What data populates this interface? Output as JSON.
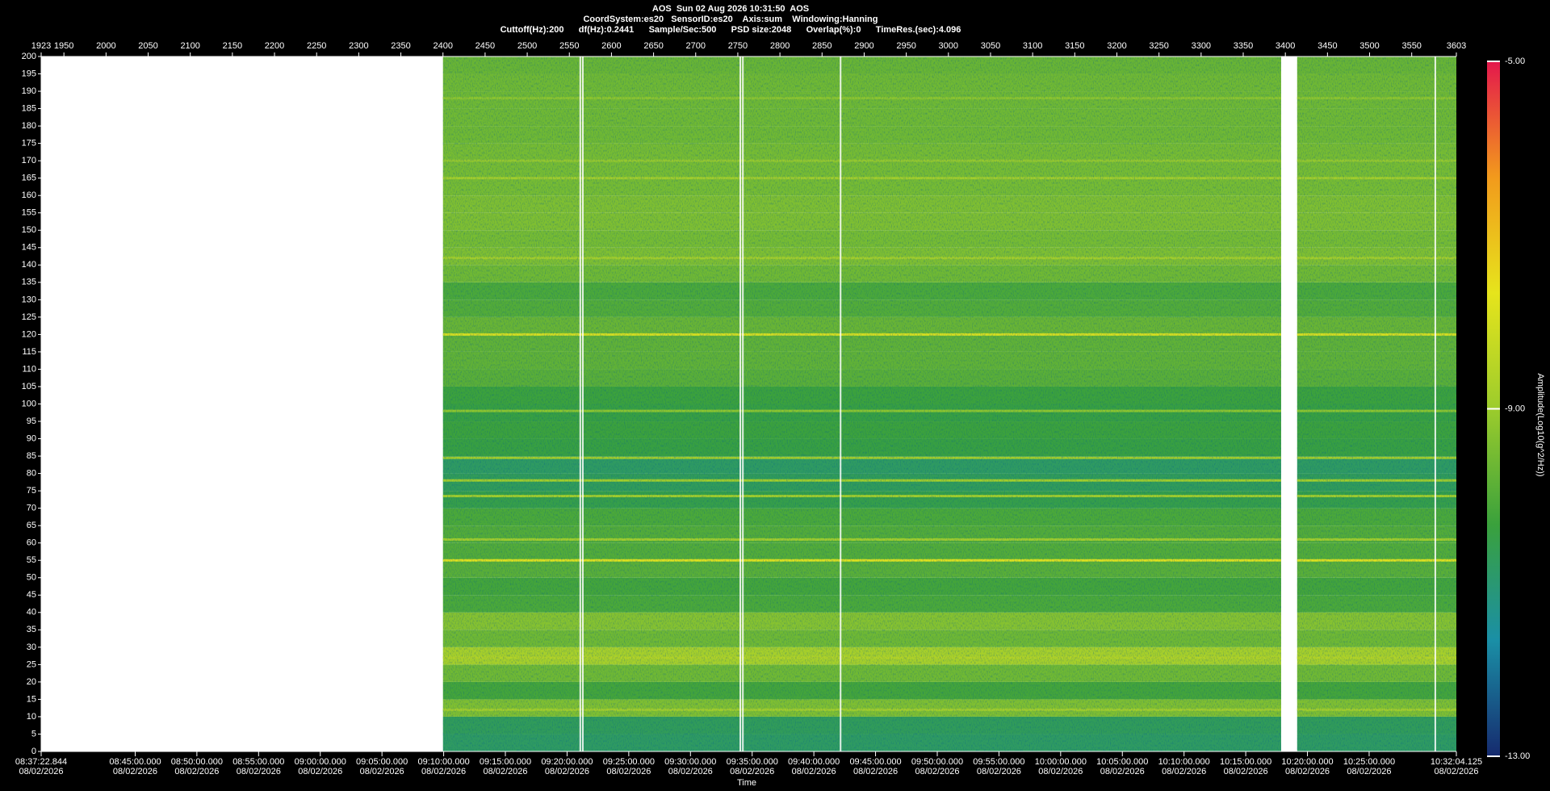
{
  "chart_data": {
    "type": "spectrogram",
    "title": "AOS  Sun 02 Aug 2026 10:31:50  AOS",
    "subtitle": "CoordSystem:es20   SensorID:es20    Axis:sum    Windowing:Hanning",
    "parameters": "Cuttoff(Hz):200      df(Hz):0.2441      Sample/Sec:500      PSD size:2048      Overlap(%):0      TimeRes.(sec):4.096",
    "xlabel": "Time",
    "xlim": [
      1923,
      3603
    ],
    "xticks": [
      1923,
      1950,
      2000,
      2050,
      2100,
      2150,
      2200,
      2250,
      2300,
      2350,
      2400,
      2450,
      2500,
      2550,
      2600,
      2650,
      2700,
      2750,
      2800,
      2850,
      2900,
      2950,
      3000,
      3050,
      3100,
      3150,
      3200,
      3250,
      3300,
      3350,
      3400,
      3450,
      3500,
      3550,
      3603
    ],
    "time_ticks": [
      {
        "value": 1923,
        "label": "08:37:22.844",
        "date": "08/02/2026"
      },
      {
        "value": 2034.61,
        "label": "08:45:00.000",
        "date": "08/02/2026"
      },
      {
        "value": 2107.85,
        "label": "08:50:00.000",
        "date": "08/02/2026"
      },
      {
        "value": 2181.1,
        "label": "08:55:00.000",
        "date": "08/02/2026"
      },
      {
        "value": 2254.34,
        "label": "09:00:00.000",
        "date": "08/02/2026"
      },
      {
        "value": 2327.58,
        "label": "09:05:00.000",
        "date": "08/02/2026"
      },
      {
        "value": 2400.82,
        "label": "09:10:00.000",
        "date": "08/02/2026"
      },
      {
        "value": 2474.07,
        "label": "09:15:00.000",
        "date": "08/02/2026"
      },
      {
        "value": 2547.31,
        "label": "09:20:00.000",
        "date": "08/02/2026"
      },
      {
        "value": 2620.55,
        "label": "09:25:00.000",
        "date": "08/02/2026"
      },
      {
        "value": 2693.79,
        "label": "09:30:00.000",
        "date": "08/02/2026"
      },
      {
        "value": 2767.04,
        "label": "09:35:00.000",
        "date": "08/02/2026"
      },
      {
        "value": 2840.28,
        "label": "09:40:00.000",
        "date": "08/02/2026"
      },
      {
        "value": 2913.52,
        "label": "09:45:00.000",
        "date": "08/02/2026"
      },
      {
        "value": 2986.77,
        "label": "09:50:00.000",
        "date": "08/02/2026"
      },
      {
        "value": 3060.01,
        "label": "09:55:00.000",
        "date": "08/02/2026"
      },
      {
        "value": 3133.25,
        "label": "10:00:00.000",
        "date": "08/02/2026"
      },
      {
        "value": 3206.49,
        "label": "10:05:00.000",
        "date": "08/02/2026"
      },
      {
        "value": 3279.74,
        "label": "10:10:00.000",
        "date": "08/02/2026"
      },
      {
        "value": 3352.98,
        "label": "10:15:00.000",
        "date": "08/02/2026"
      },
      {
        "value": 3426.22,
        "label": "10:20:00.000",
        "date": "08/02/2026"
      },
      {
        "value": 3499.46,
        "label": "10:25:00.000",
        "date": "08/02/2026"
      },
      {
        "value": 3603,
        "label": "10:32:04.125",
        "date": "08/02/2026"
      }
    ],
    "ylim": [
      0,
      200
    ],
    "yticks": [
      0,
      5,
      10,
      15,
      20,
      25,
      30,
      35,
      40,
      45,
      50,
      55,
      60,
      65,
      70,
      75,
      80,
      85,
      90,
      95,
      100,
      105,
      110,
      115,
      120,
      125,
      130,
      135,
      140,
      145,
      150,
      155,
      160,
      165,
      170,
      175,
      180,
      185,
      190,
      195,
      200
    ],
    "segments": [
      [
        2400,
        3395
      ],
      [
        3414,
        3603
      ]
    ],
    "dropouts": [
      2563,
      2566,
      2753,
      2756,
      2872,
      3578
    ],
    "spectrum": {
      "freqs": [
        0,
        5,
        10,
        15,
        20,
        25,
        30,
        35,
        40,
        45,
        50,
        55,
        60,
        65,
        70,
        75,
        80,
        85,
        90,
        95,
        100,
        105,
        110,
        115,
        120,
        125,
        130,
        135,
        140,
        145,
        150,
        155,
        160,
        165,
        170,
        175,
        180,
        185,
        190,
        195
      ],
      "values": [
        -10.8,
        -10.7,
        -9.4,
        -10.2,
        -9.6,
        -8.8,
        -9.6,
        -9.3,
        -10.1,
        -10.2,
        -9.9,
        -10.0,
        -10.0,
        -10.1,
        -10.5,
        -10.7,
        -10.8,
        -10.4,
        -10.3,
        -10.4,
        -10.3,
        -9.9,
        -9.8,
        -9.8,
        -9.7,
        -10.0,
        -10.1,
        -9.6,
        -9.4,
        -9.5,
        -9.4,
        -9.4,
        -9.5,
        -9.5,
        -9.5,
        -9.6,
        -9.6,
        -9.6,
        -9.6,
        -9.7
      ]
    },
    "tones": {
      "freqs": [
        12,
        27,
        55,
        61,
        73.5,
        78,
        84.5,
        98,
        120,
        142,
        165,
        170,
        188
      ],
      "values": [
        -8.9,
        -8.6,
        -7.8,
        -8.9,
        -8.9,
        -8.9,
        -8.9,
        -9.2,
        -8.0,
        -8.9,
        -8.9,
        -9.1,
        -9.2
      ]
    },
    "colormap": [
      "#162a6e",
      "#1a8fa6",
      "#3aa13c",
      "#9ccc2c",
      "#e6e41c",
      "#f29a1c",
      "#e4184c"
    ],
    "colorbar": {
      "lim": [
        -13,
        -5
      ],
      "ticks": [
        {
          "value": -13,
          "label": "-13.00"
        },
        {
          "value": -9,
          "label": "-9.00"
        },
        {
          "value": -5,
          "label": "-5.00"
        }
      ],
      "label": "Amplitude(Log10(g^2/Hz))"
    }
  }
}
